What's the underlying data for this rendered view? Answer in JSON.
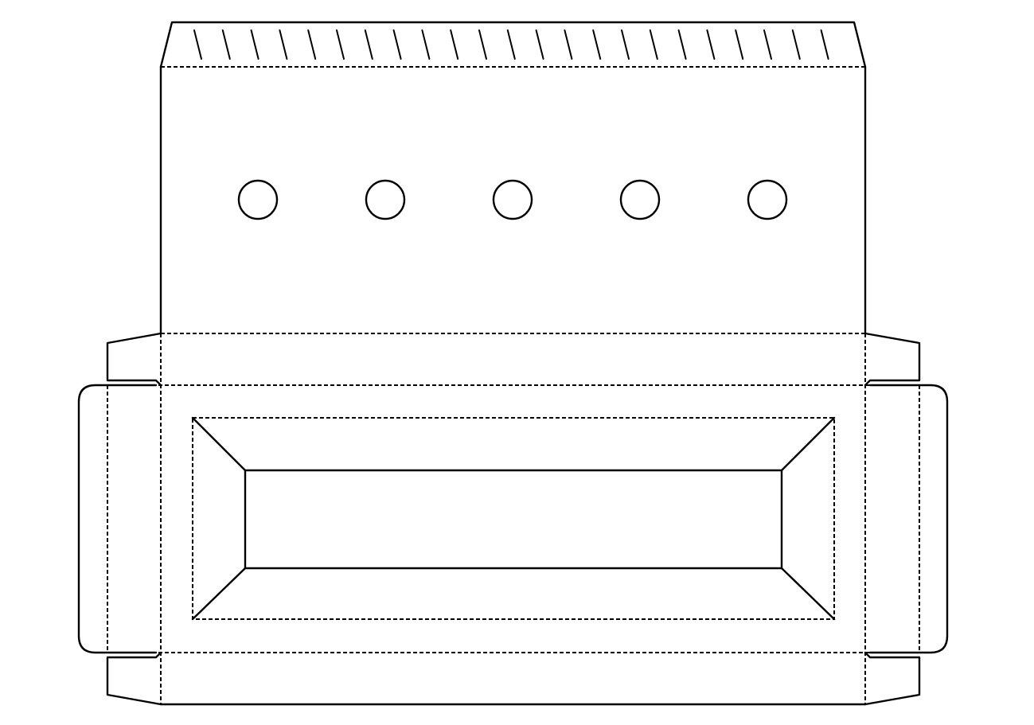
{
  "diagram": {
    "kind": "box-dieline",
    "glue_flap_hatch_lines": 23,
    "ventilation_holes": 5,
    "colors": {
      "line": "#000000",
      "background": "#ffffff"
    }
  }
}
